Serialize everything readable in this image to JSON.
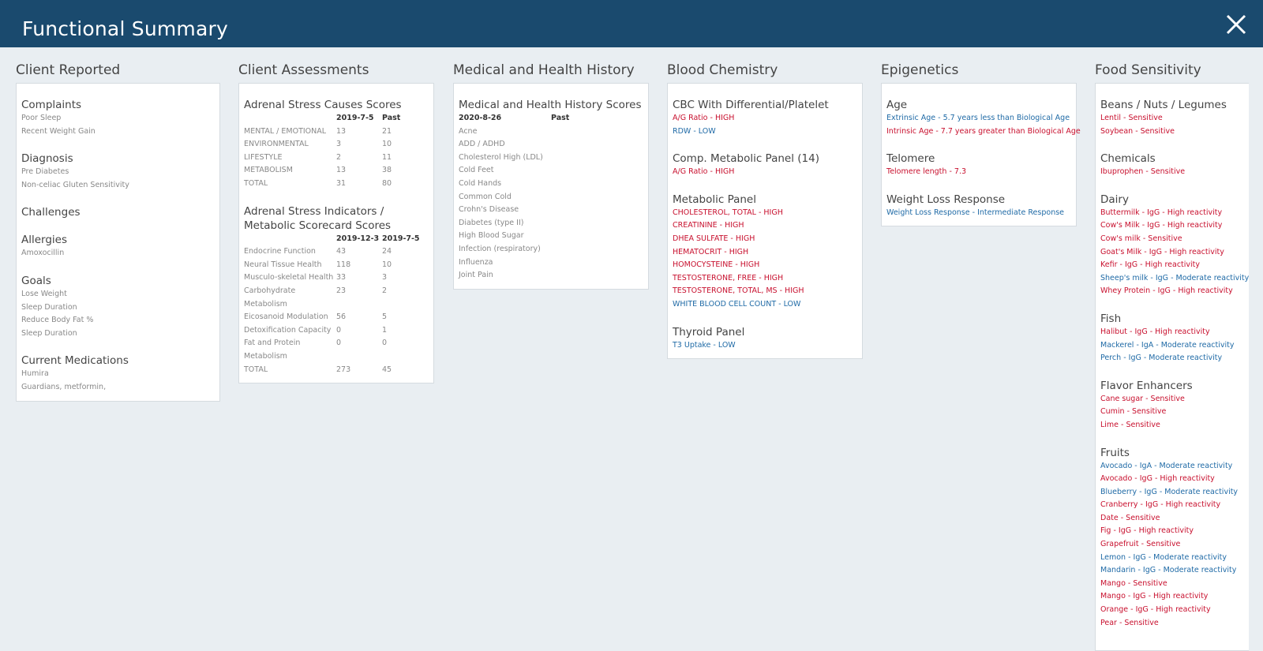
{
  "header": {
    "title": "Functional Summary",
    "close_icon": "close-icon"
  },
  "columns": {
    "client_reported": {
      "heading": "Client Reported",
      "sections": [
        {
          "title": "Complaints",
          "items": [
            "Poor Sleep",
            "Recent Weight Gain"
          ]
        },
        {
          "title": "Diagnosis",
          "items": [
            "Pre Diabetes",
            "Non-celiac Gluten Sensitivity"
          ]
        },
        {
          "title": "Challenges",
          "items": []
        },
        {
          "title": "Allergies",
          "items": [
            "Amoxocillin"
          ]
        },
        {
          "title": "Goals",
          "items": [
            "Lose Weight",
            "Sleep Duration",
            "Reduce Body Fat %",
            "Sleep Duration"
          ]
        },
        {
          "title": "Current Medications",
          "items": [
            "Humira",
            "Guardians, metformin,"
          ]
        }
      ]
    },
    "client_assessments": {
      "heading": "Client Assessments",
      "adrenal_causes": {
        "title": "Adrenal Stress Causes Scores",
        "headers": [
          "",
          "2019-7-5",
          "Past"
        ],
        "rows": [
          [
            "MENTAL / EMOTIONAL",
            "13",
            "21"
          ],
          [
            "ENVIRONMENTAL",
            "3",
            "10"
          ],
          [
            "LIFESTYLE",
            "2",
            "11"
          ],
          [
            "METABOLISM",
            "13",
            "38"
          ],
          [
            "TOTAL",
            "31",
            "80"
          ]
        ]
      },
      "adrenal_indicators": {
        "title": "Adrenal Stress Indicators / Metabolic Scorecard Scores",
        "headers": [
          "",
          "2019-12-3",
          "2019-7-5"
        ],
        "rows": [
          [
            "Endocrine Function",
            "43",
            "24"
          ],
          [
            "Neural Tissue Health",
            "118",
            "10"
          ],
          [
            "Musculo-skeletal Health",
            "33",
            "3"
          ],
          [
            "Carbohydrate Metabolism",
            "23",
            "2"
          ],
          [
            "Eicosanoid Modulation",
            "56",
            "5"
          ],
          [
            "Detoxification Capacity",
            "0",
            "1"
          ],
          [
            "Fat and Protein Metabolism",
            "0",
            "0"
          ],
          [
            "TOTAL",
            "273",
            "45"
          ]
        ]
      }
    },
    "medical_history": {
      "heading": "Medical and Health History",
      "title": "Medical and Health History Scores",
      "headers": [
        "2020-8-26",
        "Past"
      ],
      "items": [
        "Acne",
        "ADD / ADHD",
        "Cholesterol High (LDL)",
        "Cold Feet",
        "Cold Hands",
        "Common Cold",
        "Crohn's Disease",
        "Diabetes (type II)",
        "High Blood Sugar",
        "Infection (respiratory)",
        "Influenza",
        "Joint Pain"
      ]
    },
    "blood_chemistry": {
      "heading": "Blood Chemistry",
      "sections": [
        {
          "title": "CBC With Differential/Platelet",
          "items": [
            {
              "text": "A/G Ratio - HIGH",
              "level": "high"
            },
            {
              "text": "RDW - LOW",
              "level": "low"
            }
          ]
        },
        {
          "title": "Comp. Metabolic Panel (14)",
          "items": [
            {
              "text": "A/G Ratio - HIGH",
              "level": "high"
            }
          ]
        },
        {
          "title": "Metabolic Panel",
          "items": [
            {
              "text": "CHOLESTEROL, TOTAL - HIGH",
              "level": "high"
            },
            {
              "text": "CREATININE - HIGH",
              "level": "high"
            },
            {
              "text": "DHEA SULFATE - HIGH",
              "level": "high"
            },
            {
              "text": "HEMATOCRIT - HIGH",
              "level": "high"
            },
            {
              "text": "HOMOCYSTEINE - HIGH",
              "level": "high"
            },
            {
              "text": "TESTOSTERONE, FREE - HIGH",
              "level": "high"
            },
            {
              "text": "TESTOSTERONE, TOTAL, MS - HIGH",
              "level": "high"
            },
            {
              "text": "WHITE BLOOD CELL COUNT - LOW",
              "level": "low"
            }
          ]
        },
        {
          "title": "Thyroid Panel",
          "items": [
            {
              "text": "T3 Uptake - LOW",
              "level": "low"
            }
          ]
        }
      ]
    },
    "epigenetics": {
      "heading": "Epigenetics",
      "sections": [
        {
          "title": "Age",
          "items": [
            {
              "text": "Extrinsic Age - 5.7 years less than Biological Age",
              "level": "low"
            },
            {
              "text": "Intrinsic Age - 7.7 years greater than Biological Age",
              "level": "high"
            }
          ]
        },
        {
          "title": "Telomere",
          "items": [
            {
              "text": "Telomere length - 7.3",
              "level": "high"
            }
          ]
        },
        {
          "title": "Weight Loss Response",
          "items": [
            {
              "text": "Weight Loss Response - Intermediate Response",
              "level": "low"
            }
          ]
        }
      ]
    },
    "food_sensitivity": {
      "heading": "Food Sensitivity",
      "sections": [
        {
          "title": "Beans / Nuts / Legumes",
          "items": [
            {
              "text": "Lentil - Sensitive",
              "level": "high"
            },
            {
              "text": "Soybean - Sensitive",
              "level": "high"
            }
          ]
        },
        {
          "title": "Chemicals",
          "items": [
            {
              "text": "Ibuprophen - Sensitive",
              "level": "high"
            }
          ]
        },
        {
          "title": "Dairy",
          "items": [
            {
              "text": "Buttermilk - IgG - High reactivity",
              "level": "high"
            },
            {
              "text": "Cow's Milk - IgG - High reactivity",
              "level": "high"
            },
            {
              "text": "Cow's milk - Sensitive",
              "level": "high"
            },
            {
              "text": "Goat's Milk - IgG - High reactivity",
              "level": "high"
            },
            {
              "text": "Kefir - IgG - High reactivity",
              "level": "high"
            },
            {
              "text": "Sheep's milk - IgG - Moderate reactivity",
              "level": "low"
            },
            {
              "text": "Whey Protein - IgG - High reactivity",
              "level": "high"
            }
          ]
        },
        {
          "title": "Fish",
          "items": [
            {
              "text": "Halibut - IgG - High reactivity",
              "level": "high"
            },
            {
              "text": "Mackerel - IgA - Moderate reactivity",
              "level": "low"
            },
            {
              "text": "Perch - IgG - Moderate reactivity",
              "level": "low"
            }
          ]
        },
        {
          "title": "Flavor Enhancers",
          "items": [
            {
              "text": "Cane sugar - Sensitive",
              "level": "high"
            },
            {
              "text": "Cumin - Sensitive",
              "level": "high"
            },
            {
              "text": "Lime - Sensitive",
              "level": "high"
            }
          ]
        },
        {
          "title": "Fruits",
          "items": [
            {
              "text": "Avocado - IgA - Moderate reactivity",
              "level": "low"
            },
            {
              "text": "Avocado - IgG - High reactivity",
              "level": "high"
            },
            {
              "text": "Blueberry - IgG - Moderate reactivity",
              "level": "low"
            },
            {
              "text": "Cranberry - IgG - High reactivity",
              "level": "high"
            },
            {
              "text": "Date - Sensitive",
              "level": "high"
            },
            {
              "text": "Fig - IgG - High reactivity",
              "level": "high"
            },
            {
              "text": "Grapefruit - Sensitive",
              "level": "high"
            },
            {
              "text": "Lemon - IgG - Moderate reactivity",
              "level": "low"
            },
            {
              "text": "Mandarin - IgG - Moderate reactivity",
              "level": "low"
            },
            {
              "text": "Mango - Sensitive",
              "level": "high"
            },
            {
              "text": "Mango - IgG - High reactivity",
              "level": "high"
            },
            {
              "text": "Orange - IgG - High reactivity",
              "level": "high"
            },
            {
              "text": "Pear - Sensitive",
              "level": "high"
            }
          ]
        }
      ]
    }
  },
  "colors": {
    "header_bg": "#1a4a6e",
    "high": "#c8102e",
    "low": "#1f6aa6",
    "page_bg": "#e9eef2"
  }
}
